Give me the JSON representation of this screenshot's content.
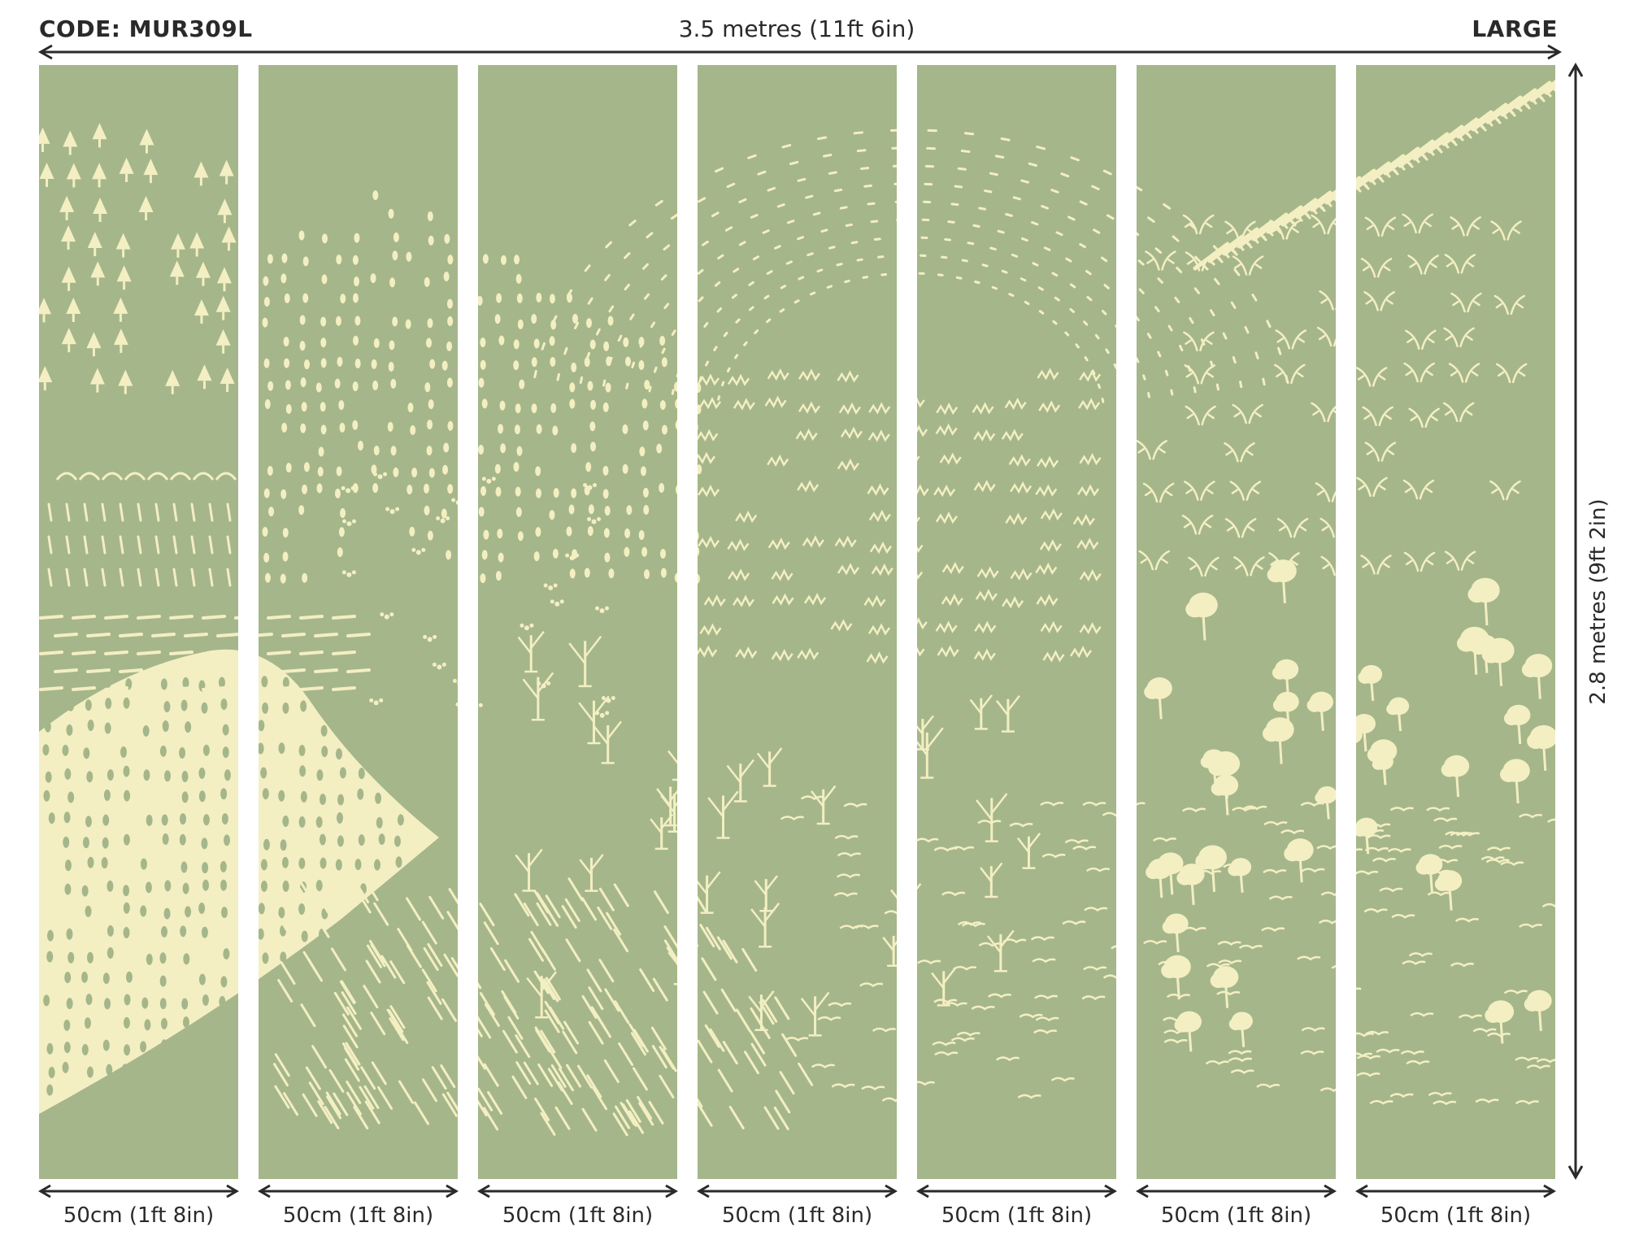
{
  "header": {
    "code_label": "CODE: MUR309L",
    "width_label": "3.5 metres (11ft 6in)",
    "size_label": "LARGE"
  },
  "height_label": "2.8 metres (9ft 2in)",
  "panels": [
    {
      "label": "50cm (1ft 8in)",
      "motif": "trees-dashes-hill"
    },
    {
      "label": "50cm (1ft 8in)",
      "motif": "dots-hill-lines"
    },
    {
      "label": "50cm (1ft 8in)",
      "motif": "dots-bare-trees"
    },
    {
      "label": "50cm (1ft 8in)",
      "motif": "arcs-grass-bare-trees"
    },
    {
      "label": "50cm (1ft 8in)",
      "motif": "grass-bare-trees-birds"
    },
    {
      "label": "50cm (1ft 8in)",
      "motif": "hatch-antlers-trees-birds"
    },
    {
      "label": "50cm (1ft 8in)",
      "motif": "hatch-antlers-trees"
    }
  ],
  "colors": {
    "panel_bg": "#a5b68a",
    "motif": "#f3efc2",
    "text": "#2a2a2a"
  }
}
